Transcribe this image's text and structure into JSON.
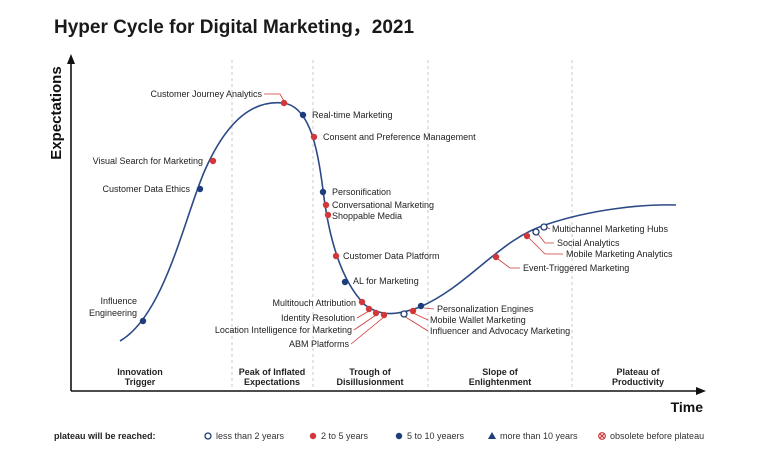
{
  "title": "Hyper Cycle for Digital Marketing，2021",
  "axes": {
    "y_label": "Expectations",
    "x_label": "Time"
  },
  "colors": {
    "red": "#d0383a",
    "navy": "#1f3d7a",
    "curve": "#2b4a86",
    "leader": "#d0383a",
    "text": "#222222"
  },
  "phases": [
    {
      "lines": [
        "Innovation",
        "Trigger"
      ]
    },
    {
      "lines": [
        "Peak of Inflated",
        "Expectations"
      ]
    },
    {
      "lines": [
        "Trough of",
        "Disillusionment"
      ]
    },
    {
      "lines": [
        "Slope of",
        "Enlightenment"
      ]
    },
    {
      "lines": [
        "Plateau of",
        "Productivity"
      ]
    }
  ],
  "technologies": [
    {
      "name": "Influence Engineering",
      "lines": [
        "Influence",
        "Engineering"
      ],
      "status": "5 to 10 years"
    },
    {
      "name": "Customer Data Ethics",
      "lines": [
        "Customer Data Ethics"
      ],
      "status": "5 to 10 years"
    },
    {
      "name": "Visual Search for Marketing",
      "lines": [
        "Visual Search for Marketing"
      ],
      "status": "2 to 5 years"
    },
    {
      "name": "Customer Journey Analytics",
      "lines": [
        "Customer Journey Analytics"
      ],
      "status": "2 to 5 years"
    },
    {
      "name": "Real-time Marketing",
      "lines": [
        "Real-time Marketing"
      ],
      "status": "5 to 10 years"
    },
    {
      "name": "Consent and Preference Management",
      "lines": [
        "Consent and Preference Management"
      ],
      "status": "2 to 5 years"
    },
    {
      "name": "Personification",
      "lines": [
        "Personification"
      ],
      "status": "5 to 10 years"
    },
    {
      "name": "Conversational Marketing",
      "lines": [
        "Conversational Marketing"
      ],
      "status": "2 to 5 years"
    },
    {
      "name": "Shoppable Media",
      "lines": [
        "Shoppable Media"
      ],
      "status": "2 to 5 years"
    },
    {
      "name": "Customer Data Platform",
      "lines": [
        "Customer Data Platform"
      ],
      "status": "2 to 5 years"
    },
    {
      "name": "AL for Marketing",
      "lines": [
        "AL for Marketing"
      ],
      "status": "5 to 10 years"
    },
    {
      "name": "Multitouch Attribution",
      "lines": [
        "Multitouch Attribution"
      ],
      "status": "2 to 5 years"
    },
    {
      "name": "Identity Resolution",
      "lines": [
        "Identity Resolution"
      ],
      "status": "2 to 5 years"
    },
    {
      "name": "Location Intelligence for Marketing",
      "lines": [
        "Location Intelligence for Marketing"
      ],
      "status": "2 to 5 years"
    },
    {
      "name": "ABM Platforms",
      "lines": [
        "ABM Platforms"
      ],
      "status": "2 to 5 years"
    },
    {
      "name": "Influencer and Advocacy Marketing",
      "lines": [
        "Influencer and Advocacy Marketing"
      ],
      "status": "less than 2 years"
    },
    {
      "name": "Mobile Wallet Marketing",
      "lines": [
        "Mobile Wallet Marketing"
      ],
      "status": "2 to 5 years"
    },
    {
      "name": "Personalization Engines",
      "lines": [
        "Personalization Engines"
      ],
      "status": "5 to 10 years"
    },
    {
      "name": "Event-Triggered Marketing",
      "lines": [
        "Event-Triggered Marketing"
      ],
      "status": "2 to 5 years"
    },
    {
      "name": "Mobile Marketing Analytics",
      "lines": [
        "Mobile Marketing Analytics"
      ],
      "status": "2 to 5 years"
    },
    {
      "name": "Social Analytics",
      "lines": [
        "Social Analytics"
      ],
      "status": "less than 2 years"
    },
    {
      "name": "Multichannel Marketing Hubs",
      "lines": [
        "Multichannel Marketing Hubs"
      ],
      "status": "less than 2 years"
    }
  ],
  "legend": {
    "heading": "plateau will be reached:",
    "items": [
      {
        "key": "less than 2 years",
        "label": "less than 2 years",
        "marker": "open-circle"
      },
      {
        "key": "2 to 5 years",
        "label": "2 to 5 years",
        "marker": "red-dot"
      },
      {
        "key": "5 to 10 years",
        "label": "5 to 10 yeaers",
        "marker": "navy-dot"
      },
      {
        "key": "more than 10 years",
        "label": "more than 10 years",
        "marker": "navy-triangle"
      },
      {
        "key": "obsolete before plateau",
        "label": "obsolete before plateau",
        "marker": "crossed-red-dot"
      }
    ]
  }
}
